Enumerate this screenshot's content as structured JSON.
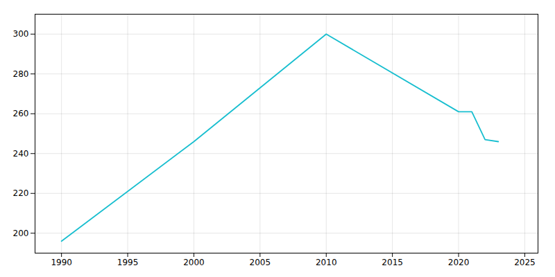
{
  "chart_data": {
    "type": "line",
    "x": [
      1990,
      2000,
      2010,
      2020,
      2021,
      2022,
      2023
    ],
    "values": [
      196,
      246,
      300,
      261,
      261,
      247,
      246
    ],
    "color": "#17becf",
    "xlim": [
      1988,
      2026
    ],
    "xticks": [
      1990,
      1995,
      2000,
      2005,
      2010,
      2015,
      2020,
      2025
    ],
    "ylim": [
      190,
      310
    ],
    "yticks": [
      200,
      220,
      240,
      260,
      280,
      300
    ],
    "grid": true
  }
}
